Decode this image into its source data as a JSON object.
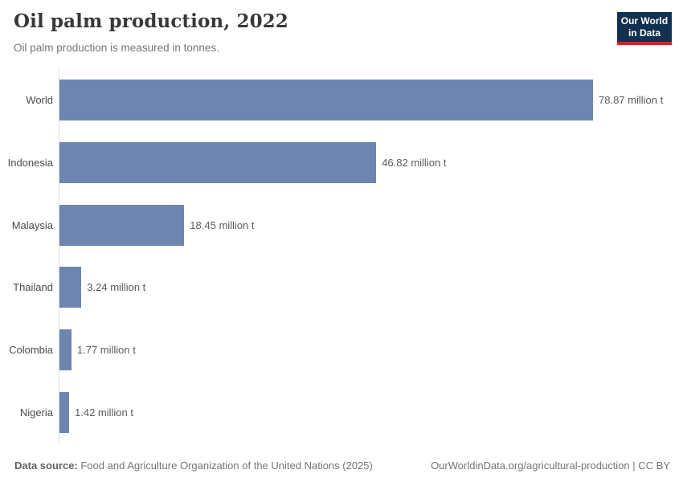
{
  "header": {
    "title": "Oil palm production, 2022",
    "subtitle": "Oil palm production is measured in tonnes."
  },
  "logo": {
    "line1": "Our World",
    "line2": "in Data",
    "bg_color": "#12304f",
    "accent_color": "#cb2824"
  },
  "chart_data": {
    "type": "bar",
    "orientation": "horizontal",
    "title": "Oil palm production, 2022",
    "subtitle": "Oil palm production is measured in tonnes.",
    "unit": "million t",
    "categories": [
      "World",
      "Indonesia",
      "Malaysia",
      "Thailand",
      "Colombia",
      "Nigeria"
    ],
    "values": [
      78.87,
      46.82,
      18.45,
      3.24,
      1.77,
      1.42
    ],
    "value_labels": [
      "78.87 million t",
      "46.82 million t",
      "18.45 million t",
      "3.24 million t",
      "1.77 million t",
      "1.42 million t"
    ],
    "xlabel": "",
    "ylabel": "",
    "xlim": [
      0,
      78.87
    ],
    "grid": false,
    "legend": "none",
    "bar_color": "#6e86af",
    "axis_line_color": "#dcdcdc"
  },
  "footer": {
    "source_label": "Data source:",
    "source_text": " Food and Agriculture Organization of the United Nations (2025)",
    "credit": "OurWorldinData.org/agricultural-production | CC BY"
  }
}
